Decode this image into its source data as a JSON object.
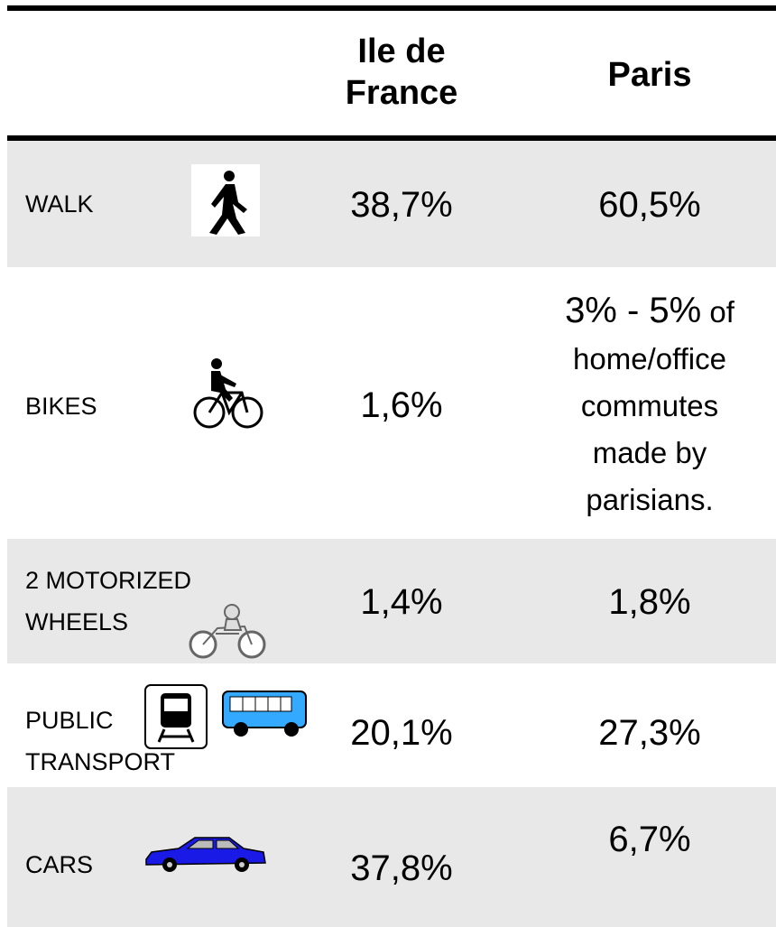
{
  "table": {
    "header": [
      "Ile de France",
      "Paris"
    ],
    "rows": [
      {
        "label": "WALK",
        "ile_de_france": "38,7%",
        "paris": "60,5%"
      },
      {
        "label": "BIKES",
        "ile_de_france": "1,6%",
        "paris": "3% - 5%",
        "paris_note": "of home/office commutes made by parisians."
      },
      {
        "label": "2 MOTORIZED WHEELS",
        "ile_de_france": "1,4%",
        "paris": "1,8%"
      },
      {
        "label": "PUBLIC TRANSPORT",
        "ile_de_france": "20,1%",
        "paris": "27,3%"
      },
      {
        "label": "CARS",
        "ile_de_france": "37,8%",
        "paris": "6,7%"
      }
    ]
  }
}
